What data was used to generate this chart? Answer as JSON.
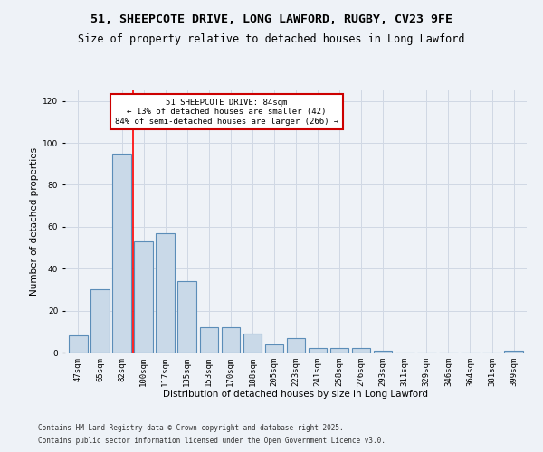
{
  "title1": "51, SHEEPCOTE DRIVE, LONG LAWFORD, RUGBY, CV23 9FE",
  "title2": "Size of property relative to detached houses in Long Lawford",
  "xlabel": "Distribution of detached houses by size in Long Lawford",
  "ylabel": "Number of detached properties",
  "categories": [
    "47sqm",
    "65sqm",
    "82sqm",
    "100sqm",
    "117sqm",
    "135sqm",
    "153sqm",
    "170sqm",
    "188sqm",
    "205sqm",
    "223sqm",
    "241sqm",
    "258sqm",
    "276sqm",
    "293sqm",
    "311sqm",
    "329sqm",
    "346sqm",
    "364sqm",
    "381sqm",
    "399sqm"
  ],
  "values": [
    8,
    30,
    95,
    53,
    57,
    34,
    12,
    12,
    9,
    4,
    7,
    2,
    2,
    2,
    1,
    0,
    0,
    0,
    0,
    0,
    1
  ],
  "bar_color": "#c9d9e8",
  "bar_edge_color": "#5b8db8",
  "annotation_text": "51 SHEEPCOTE DRIVE: 84sqm\n← 13% of detached houses are smaller (42)\n84% of semi-detached houses are larger (266) →",
  "annotation_box_color": "#ffffff",
  "annotation_box_edge": "#cc0000",
  "footer1": "Contains HM Land Registry data © Crown copyright and database right 2025.",
  "footer2": "Contains public sector information licensed under the Open Government Licence v3.0.",
  "bg_color": "#eef2f7",
  "ylim": [
    0,
    125
  ],
  "yticks": [
    0,
    20,
    40,
    60,
    80,
    100,
    120
  ],
  "grid_color": "#d0d8e4",
  "title_fontsize": 9.5,
  "subtitle_fontsize": 8.5,
  "axis_label_fontsize": 7.5,
  "tick_fontsize": 6.5,
  "footer_fontsize": 5.5
}
